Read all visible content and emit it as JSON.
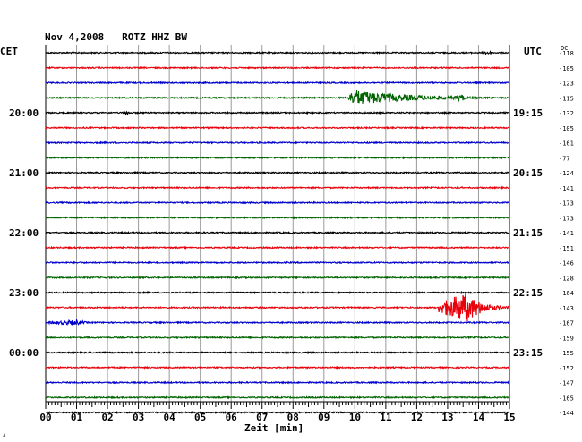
{
  "chart_data": {
    "type": "line",
    "title": "Nov 4,2008   ROTZ HHZ BW",
    "left_timezone": "CET",
    "right_timezone": "UTC",
    "dc_header": "DC",
    "xlabel": "Zeit [min]",
    "xlim": [
      0,
      15
    ],
    "x_ticks": [
      "00",
      "01",
      "02",
      "03",
      "04",
      "05",
      "06",
      "07",
      "08",
      "09",
      "10",
      "11",
      "12",
      "13",
      "14",
      "15"
    ],
    "trace_interval_minutes": 15,
    "grid": true,
    "trace_colors": [
      "#000000",
      "#e8000a",
      "#0000cc",
      "#006400"
    ],
    "left_hour_labels": [
      {
        "trace": 4,
        "label": "20:00"
      },
      {
        "trace": 8,
        "label": "21:00"
      },
      {
        "trace": 12,
        "label": "22:00"
      },
      {
        "trace": 16,
        "label": "23:00"
      },
      {
        "trace": 20,
        "label": "00:00"
      }
    ],
    "right_hour_labels": [
      {
        "trace": 4,
        "label": "19:15"
      },
      {
        "trace": 8,
        "label": "20:15"
      },
      {
        "trace": 12,
        "label": "21:15"
      },
      {
        "trace": 16,
        "label": "22:15"
      },
      {
        "trace": 20,
        "label": "23:15"
      }
    ],
    "dc_offsets": [
      -118,
      -105,
      -123,
      -115,
      -132,
      -105,
      -161,
      -77,
      -124,
      -141,
      -173,
      -173,
      -141,
      -151,
      -146,
      -128,
      -164,
      -143,
      -167,
      -159,
      -155,
      -152,
      -147,
      -165,
      -144
    ],
    "events": [
      {
        "trace": 0,
        "start_min": 14.1,
        "peak_min": 14.3,
        "end_min": 14.7,
        "amplitude": 2.5
      },
      {
        "trace": 3,
        "start_min": 9.8,
        "peak_min": 9.95,
        "end_min": 15.0,
        "amplitude": 9
      },
      {
        "trace": 3,
        "start_min": 13.2,
        "peak_min": 13.45,
        "end_min": 13.8,
        "amplitude": 4.5
      },
      {
        "trace": 4,
        "start_min": 2.5,
        "peak_min": 2.65,
        "end_min": 2.9,
        "amplitude": 2.5
      },
      {
        "trace": 17,
        "start_min": 12.7,
        "peak_min": 13.6,
        "end_min": 15.0,
        "amplitude": 17
      },
      {
        "trace": 18,
        "start_min": 0.0,
        "peak_min": 1.0,
        "end_min": 1.8,
        "amplitude": 3
      }
    ]
  },
  "corner_mark": "∧"
}
